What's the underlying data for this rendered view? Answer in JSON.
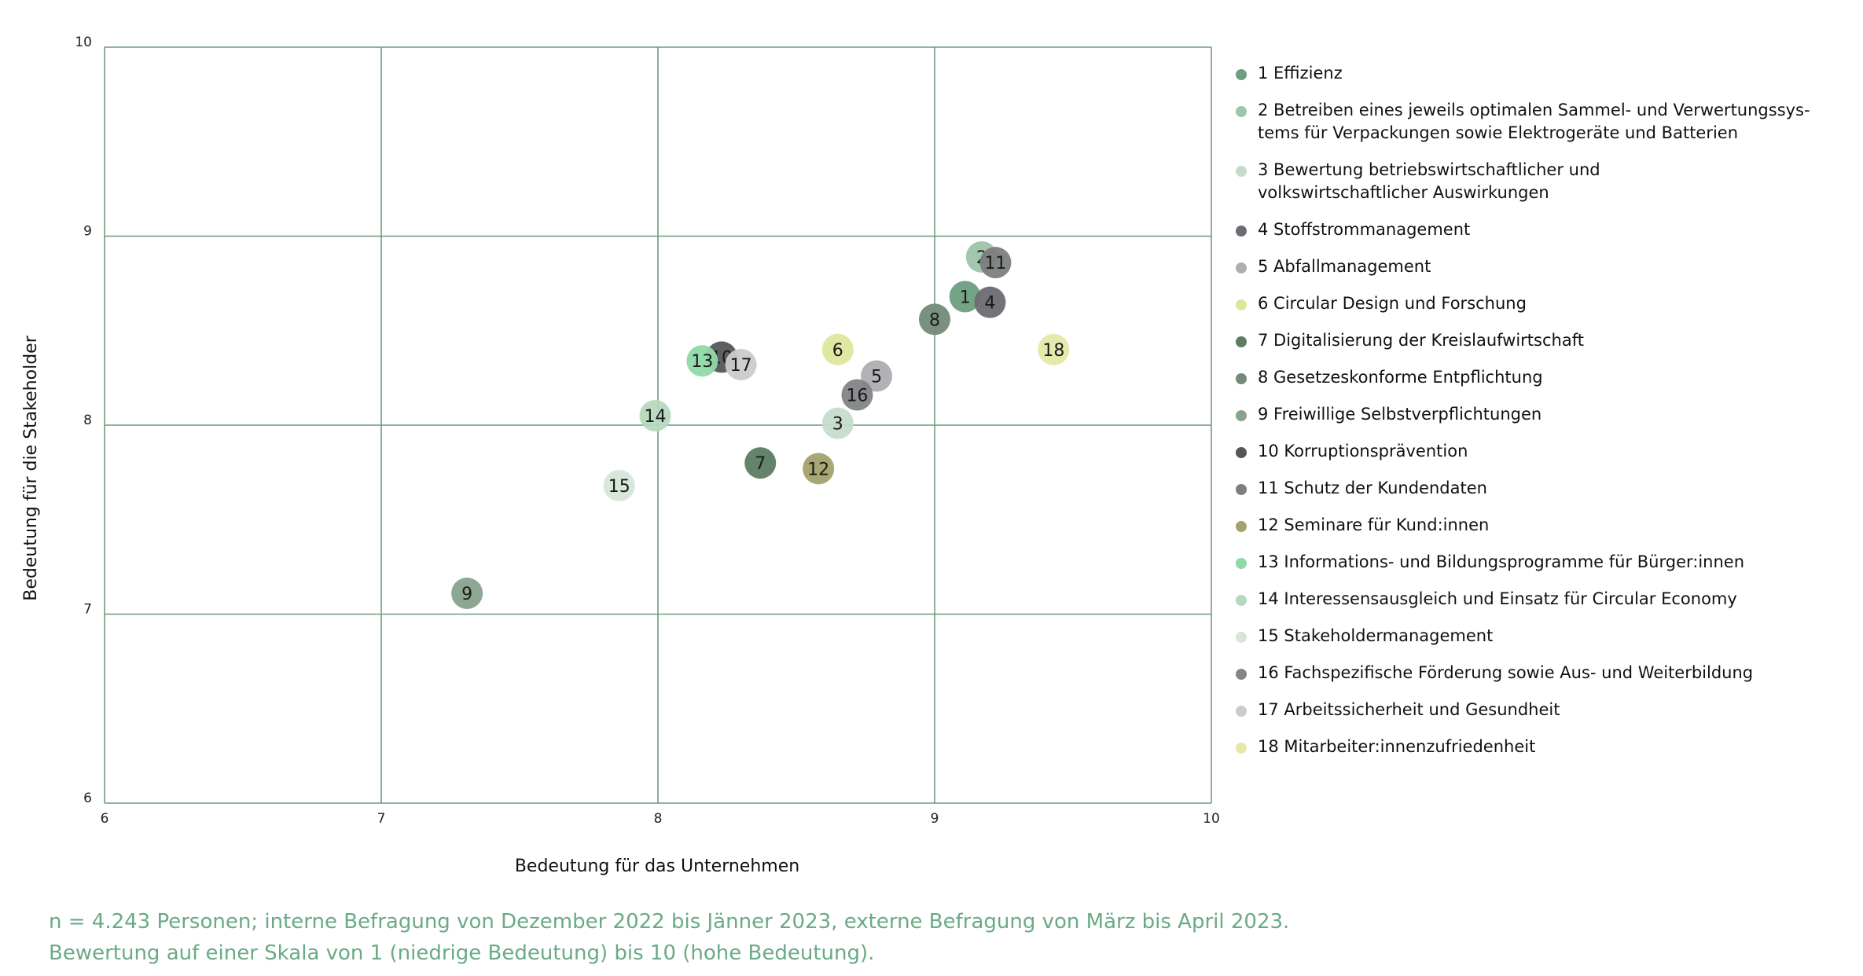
{
  "chart_data": {
    "type": "scatter",
    "title": "",
    "xlabel": "Bedeutung für das Unternehmen",
    "ylabel": "Bedeutung für die Stakeholder",
    "xlim": [
      6,
      10
    ],
    "ylim": [
      6,
      10
    ],
    "x_ticks": [
      "6",
      "7",
      "8",
      "9",
      "10"
    ],
    "y_ticks": [
      "6",
      "7",
      "8",
      "9",
      "10"
    ],
    "grid": true,
    "legend_position": "right",
    "points": [
      {
        "label": "1",
        "x": 9.11,
        "y": 8.68,
        "color": "#6e9e7f"
      },
      {
        "label": "2",
        "x": 9.17,
        "y": 8.89,
        "color": "#9ec4aa"
      },
      {
        "label": "3",
        "x": 8.65,
        "y": 8.01,
        "color": "#c5dccb"
      },
      {
        "label": "4",
        "x": 9.2,
        "y": 8.65,
        "color": "#6b6d72"
      },
      {
        "label": "5",
        "x": 8.79,
        "y": 8.26,
        "color": "#adaeb2"
      },
      {
        "label": "6",
        "x": 8.65,
        "y": 8.4,
        "color": "#dde69b"
      },
      {
        "label": "7",
        "x": 8.37,
        "y": 7.8,
        "color": "#5b7d63"
      },
      {
        "label": "8",
        "x": 9.0,
        "y": 8.56,
        "color": "#738a7a"
      },
      {
        "label": "9",
        "x": 7.31,
        "y": 7.11,
        "color": "#87a28d"
      },
      {
        "label": "10",
        "x": 8.23,
        "y": 8.36,
        "color": "#555658"
      },
      {
        "label": "11",
        "x": 9.22,
        "y": 8.86,
        "color": "#7d7e81"
      },
      {
        "label": "12",
        "x": 8.58,
        "y": 7.77,
        "color": "#a3a26b"
      },
      {
        "label": "13",
        "x": 8.16,
        "y": 8.34,
        "color": "#8fd9a6"
      },
      {
        "label": "14",
        "x": 7.99,
        "y": 8.05,
        "color": "#b6d8bf"
      },
      {
        "label": "15",
        "x": 7.86,
        "y": 7.68,
        "color": "#d6e6d8"
      },
      {
        "label": "16",
        "x": 8.72,
        "y": 8.16,
        "color": "#838487"
      },
      {
        "label": "17",
        "x": 8.3,
        "y": 8.32,
        "color": "#cbcbcd"
      },
      {
        "label": "18",
        "x": 9.43,
        "y": 8.4,
        "color": "#e5e8a8"
      }
    ],
    "legend": [
      {
        "lines": [
          "1 Effizienz"
        ],
        "color": "#6e9e7f"
      },
      {
        "lines": [
          "2 Betreiben eines jeweils optimalen Sammel- und Verwertungssys-",
          "tems für Verpackungen sowie Elektrogeräte und Batterien"
        ],
        "color": "#9ec4aa"
      },
      {
        "lines": [
          "3 Bewertung betriebswirtschaftlicher und",
          "volkswirtschaftlicher Auswirkungen"
        ],
        "color": "#c5dccb"
      },
      {
        "lines": [
          "4 Stoffstrommanagement"
        ],
        "color": "#6b6d72"
      },
      {
        "lines": [
          "5 Abfallmanagement"
        ],
        "color": "#adaeb2"
      },
      {
        "lines": [
          "6 Circular Design und Forschung"
        ],
        "color": "#dde69b"
      },
      {
        "lines": [
          "7 Digitalisierung der Kreislaufwirtschaft"
        ],
        "color": "#5b7d63"
      },
      {
        "lines": [
          "8 Gesetzeskonforme Entpflichtung"
        ],
        "color": "#738a7a"
      },
      {
        "lines": [
          "9 Freiwillige Selbstverpflichtungen"
        ],
        "color": "#87a28d"
      },
      {
        "lines": [
          "10 Korruptionsprävention"
        ],
        "color": "#555658"
      },
      {
        "lines": [
          "11 Schutz der Kundendaten"
        ],
        "color": "#7d7e81"
      },
      {
        "lines": [
          "12 Seminare für Kund:innen"
        ],
        "color": "#a3a26b"
      },
      {
        "lines": [
          "13 Informations- und Bildungsprogramme für Bürger:innen"
        ],
        "color": "#8fd9a6"
      },
      {
        "lines": [
          "14 Interessensausgleich und Einsatz für Circular Economy"
        ],
        "color": "#b6d8bf"
      },
      {
        "lines": [
          "15 Stakeholdermanagement"
        ],
        "color": "#d6e6d8"
      },
      {
        "lines": [
          "16 Fachspezifische Förderung sowie Aus- und Weiterbildung"
        ],
        "color": "#838487"
      },
      {
        "lines": [
          "17 Arbeitssicherheit und Gesundheit"
        ],
        "color": "#cbcbcd"
      },
      {
        "lines": [
          "18 Mitarbeiter:innenzufriedenheit"
        ],
        "color": "#e5e8a8"
      }
    ],
    "grid_color": "#6f9b7d"
  },
  "notes": [
    "n = 4.243 Personen; interne Befragung von Dezember 2022 bis Jänner 2023, externe Befragung von März bis April 2023.",
    "Bewertung auf einer Skala von 1 (niedrige Bedeutung) bis 10 (hohe Bedeutung)."
  ]
}
